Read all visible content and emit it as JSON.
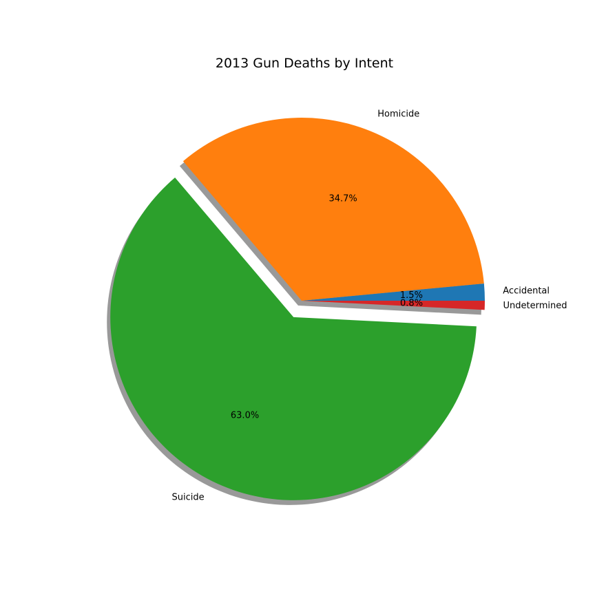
{
  "chart_data": {
    "type": "pie",
    "title": "2013 Gun Deaths by Intent",
    "categories": [
      "Accidental",
      "Homicide",
      "Suicide",
      "Undetermined"
    ],
    "values": [
      1.5,
      34.7,
      63.0,
      0.8
    ],
    "value_labels": [
      "1.5%",
      "34.7%",
      "63.0%",
      "0.8%"
    ],
    "colors": [
      "#1f77b4",
      "#ff7f0e",
      "#2ca02c",
      "#d62728"
    ],
    "explode": [
      0,
      0,
      0.1,
      0
    ],
    "shadow": true,
    "start_angle_deg": 0,
    "direction": "counterclockwise"
  }
}
